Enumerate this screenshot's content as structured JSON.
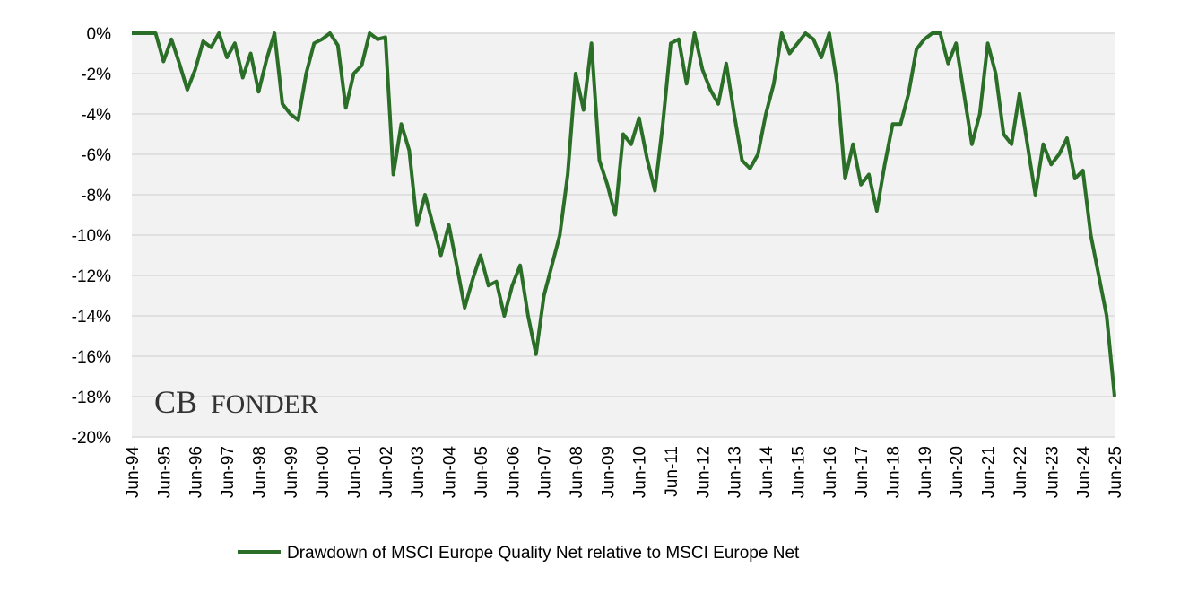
{
  "chart_data": {
    "type": "line",
    "watermark": [
      "CB",
      "FONDER"
    ],
    "ylim": [
      -20,
      0
    ],
    "yticks": [
      {
        "value": 0,
        "label": "0%"
      },
      {
        "value": -2,
        "label": "-2%"
      },
      {
        "value": -4,
        "label": "-4%"
      },
      {
        "value": -6,
        "label": "-6%"
      },
      {
        "value": -8,
        "label": "-8%"
      },
      {
        "value": -10,
        "label": "-10%"
      },
      {
        "value": -12,
        "label": "-12%"
      },
      {
        "value": -14,
        "label": "-14%"
      },
      {
        "value": -16,
        "label": "-16%"
      },
      {
        "value": -18,
        "label": "-18%"
      },
      {
        "value": -20,
        "label": "-20%"
      }
    ],
    "grid": true,
    "legend": "bottom",
    "categories": [
      "Jun-94",
      null,
      null,
      null,
      "Jun-95",
      null,
      null,
      null,
      "Jun-96",
      null,
      null,
      null,
      "Jun-97",
      null,
      null,
      null,
      "Jun-98",
      null,
      null,
      null,
      "Jun-99",
      null,
      null,
      null,
      "Jun-00",
      null,
      null,
      null,
      "Jun-01",
      null,
      null,
      null,
      "Jun-02",
      null,
      null,
      null,
      "Jun-03",
      null,
      null,
      null,
      "Jun-04",
      null,
      null,
      null,
      "Jun-05",
      null,
      null,
      null,
      "Jun-06",
      null,
      null,
      null,
      "Jun-07",
      null,
      null,
      null,
      "Jun-08",
      null,
      null,
      null,
      "Jun-09",
      null,
      null,
      null,
      "Jun-10",
      null,
      null,
      null,
      "Jun-11",
      null,
      null,
      null,
      "Jun-12",
      null,
      null,
      null,
      "Jun-13",
      null,
      null,
      null,
      "Jun-14",
      null,
      null,
      null,
      "Jun-15",
      null,
      null,
      null,
      "Jun-16",
      null,
      null,
      null,
      "Jun-17",
      null,
      null,
      null,
      "Jun-18",
      null,
      null,
      null,
      "Jun-19",
      null,
      null,
      null,
      "Jun-20",
      null,
      null,
      null,
      "Jun-21",
      null,
      null,
      null,
      "Jun-22",
      null,
      null,
      null,
      "Jun-23",
      null,
      null,
      null,
      "Jun-24",
      null,
      null,
      null,
      "Jun-25"
    ],
    "series": [
      {
        "name": "Drawdown of MSCI Europe Quality Net relative to MSCI Europe Net",
        "color": "#2a6e27",
        "values": [
          0,
          0,
          0,
          0,
          -1.4,
          -0.3,
          -1.5,
          -2.8,
          -1.8,
          -0.4,
          -0.7,
          0,
          -1.2,
          -0.5,
          -2.2,
          -1.0,
          -2.9,
          -1.3,
          0,
          -3.5,
          -4.0,
          -4.3,
          -2.0,
          -0.5,
          -0.3,
          0,
          -0.6,
          -3.7,
          -2.0,
          -1.6,
          0,
          -0.3,
          -0.2,
          -7.0,
          -4.5,
          -5.8,
          -9.5,
          -8.0,
          -9.5,
          -11,
          -9.5,
          -11.5,
          -13.6,
          -12.2,
          -11.0,
          -12.5,
          -12.3,
          -14.0,
          -12.5,
          -11.5,
          -14,
          -15.9,
          -13.0,
          -11.5,
          -10.0,
          -7.0,
          -2.0,
          -3.8,
          -0.5,
          -6.3,
          -7.5,
          -9.0,
          -5.0,
          -5.5,
          -4.2,
          -6.2,
          -7.8,
          -4.5,
          -0.5,
          -0.3,
          -2.5,
          0,
          -1.8,
          -2.8,
          -3.5,
          -1.5,
          -4.0,
          -6.3,
          -6.7,
          -6.0,
          -4.0,
          -2.5,
          0,
          -1.0,
          -0.5,
          0,
          -0.3,
          -1.2,
          0,
          -2.5,
          -7.2,
          -5.5,
          -7.5,
          -7.0,
          -8.8,
          -6.5,
          -4.5,
          -4.5,
          -3.0,
          -0.8,
          -0.3,
          0,
          0,
          -1.5,
          -0.5,
          -3.0,
          -5.5,
          -4.0,
          -0.5,
          -2.0,
          -5.0,
          -5.5,
          -3.0,
          -5.5,
          -8.0,
          -5.5,
          -6.5,
          -6.0,
          -5.2,
          -7.2,
          -6.8,
          -10.0,
          -12.0,
          -14.0,
          -18.0
        ]
      }
    ]
  }
}
